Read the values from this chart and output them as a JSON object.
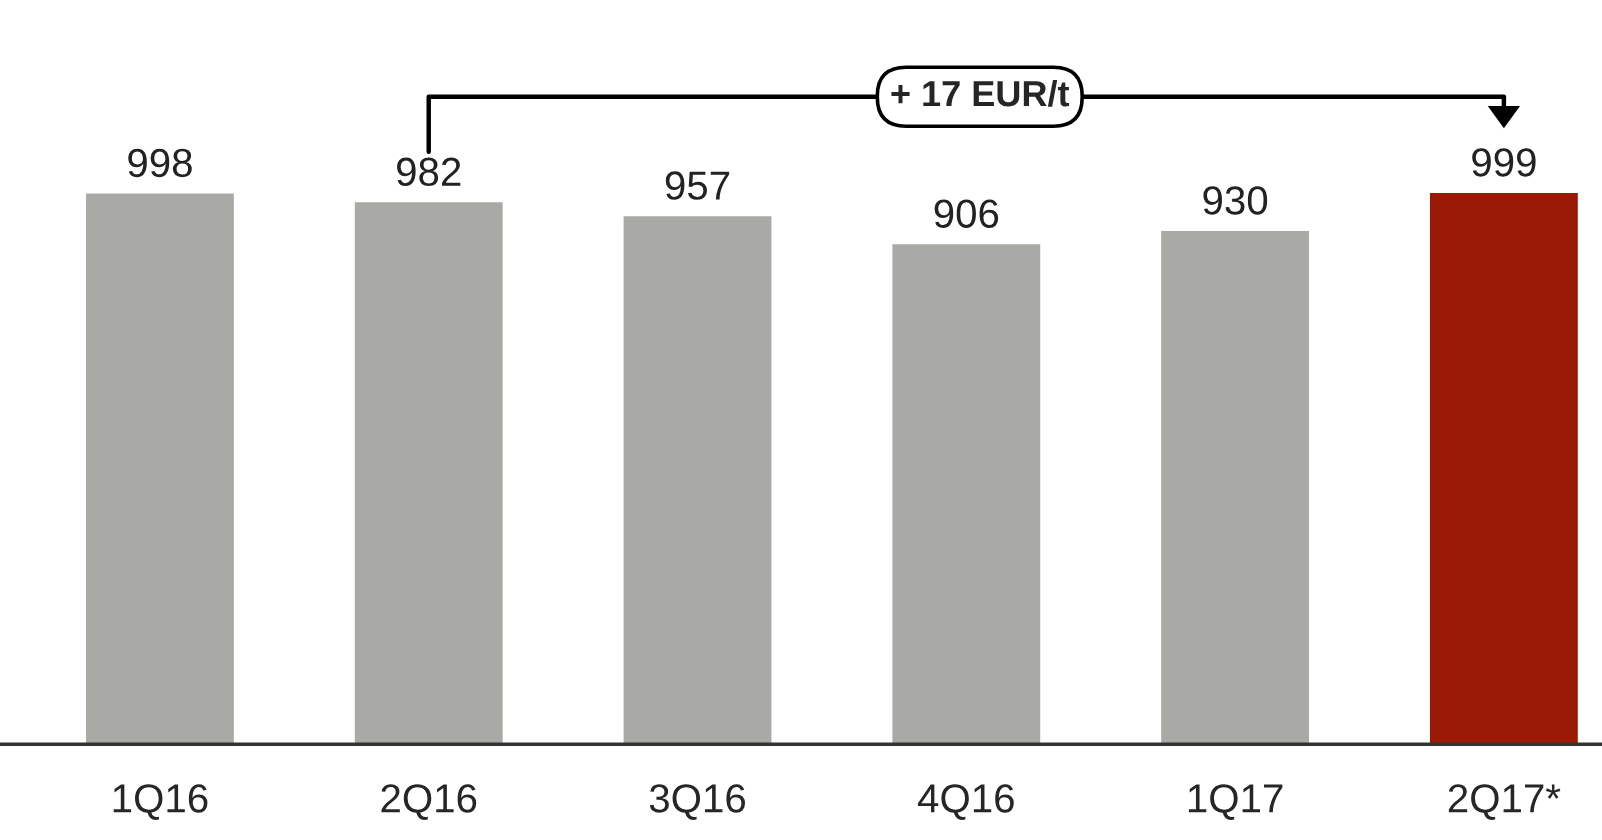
{
  "chart_data": {
    "type": "bar",
    "categories": [
      "1Q16",
      "2Q16",
      "3Q16",
      "4Q16",
      "1Q17",
      "2Q17*"
    ],
    "values": [
      998,
      982,
      957,
      906,
      930,
      999
    ],
    "colors": [
      "#a9a9a5",
      "#a9a9a5",
      "#a9a9a5",
      "#a9a9a5",
      "#a9a9a5",
      "#9b1a06"
    ],
    "data_labels": true,
    "tick_labels": "x",
    "annotations": [
      "+ 17 EUR/t"
    ]
  }
}
